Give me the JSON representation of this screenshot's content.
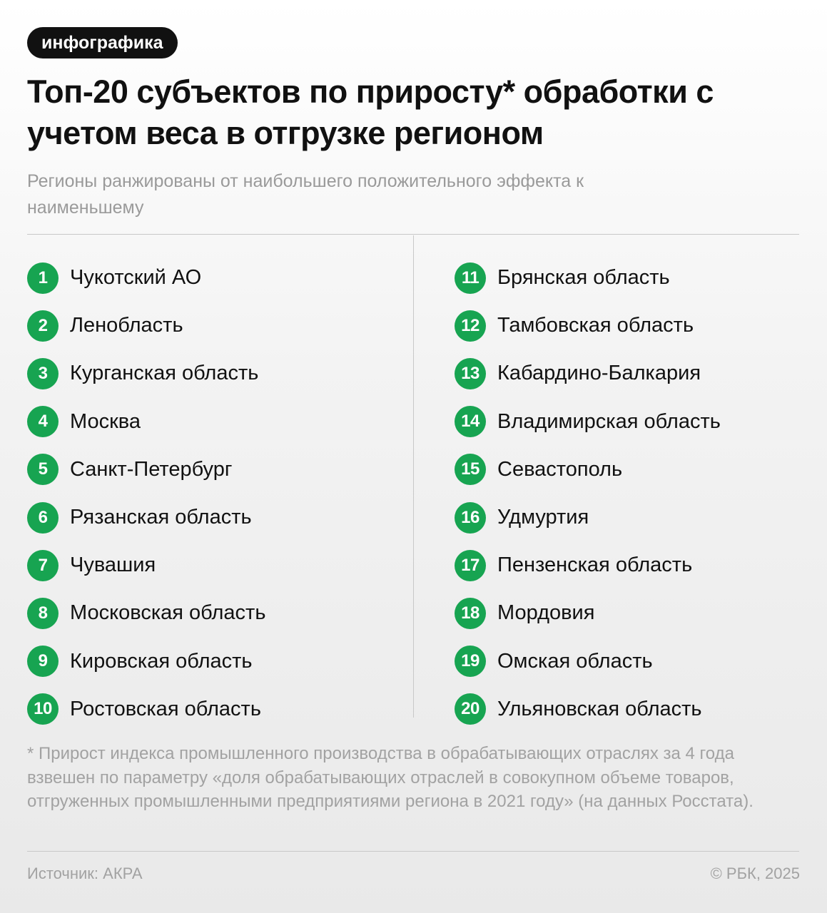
{
  "badge": "инфографика",
  "title": "Топ-20 субъектов по приросту* обработки с учетом веса в отгрузке регионом",
  "subtitle": "Регионы ранжированы от наибольшего положительного эффекта к наименьшему",
  "accent_color": "#17a451",
  "regions_left": [
    {
      "rank": "1",
      "name": "Чукотский АО"
    },
    {
      "rank": "2",
      "name": "Ленобласть"
    },
    {
      "rank": "3",
      "name": "Курганская область"
    },
    {
      "rank": "4",
      "name": "Москва"
    },
    {
      "rank": "5",
      "name": "Санкт-Петербург"
    },
    {
      "rank": "6",
      "name": "Рязанская область"
    },
    {
      "rank": "7",
      "name": "Чувашия"
    },
    {
      "rank": "8",
      "name": "Московская область"
    },
    {
      "rank": "9",
      "name": "Кировская область"
    },
    {
      "rank": "10",
      "name": "Ростовская область"
    }
  ],
  "regions_right": [
    {
      "rank": "11",
      "name": "Брянская область"
    },
    {
      "rank": "12",
      "name": "Тамбовская область"
    },
    {
      "rank": "13",
      "name": "Кабардино-Балкария"
    },
    {
      "rank": "14",
      "name": "Владимирская область"
    },
    {
      "rank": "15",
      "name": "Севастополь"
    },
    {
      "rank": "16",
      "name": "Удмуртия"
    },
    {
      "rank": "17",
      "name": "Пензенская область"
    },
    {
      "rank": "18",
      "name": "Мордовия"
    },
    {
      "rank": "19",
      "name": "Омская область"
    },
    {
      "rank": "20",
      "name": "Ульяновская область"
    }
  ],
  "footnote": "* Прирост индекса промышленного производства в обрабатывающих отраслях за 4 года взвешен по параметру «доля обрабатывающих отраслей в совокупном объеме товаров, отгруженных промышленными предприятиями региона в 2021 году» (на данных Росстата).",
  "source": "Источник: АКРА",
  "copyright": "© РБК, 2025"
}
